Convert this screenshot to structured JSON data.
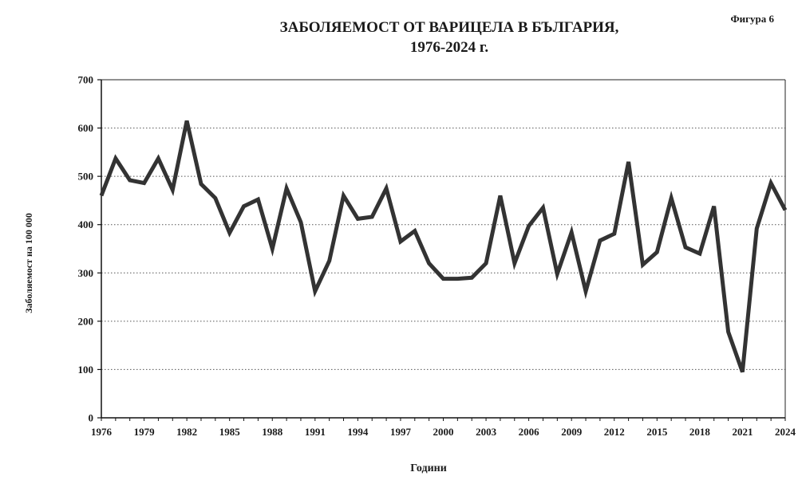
{
  "figure_label": "Фигура 6",
  "chart_data": {
    "type": "line",
    "title": "ЗАБОЛЯЕМОСТ ОТ ВАРИЦЕЛА В БЪЛГАРИЯ,",
    "subtitle": "1976-2024 г.",
    "xlabel": "Години",
    "ylabel": "Заболяемост на 100 000",
    "xlim": [
      1976,
      2024
    ],
    "ylim": [
      0,
      700
    ],
    "x_ticks": [
      1976,
      1979,
      1982,
      1985,
      1988,
      1991,
      1994,
      1997,
      2000,
      2003,
      2006,
      2009,
      2012,
      2015,
      2018,
      2021,
      2024
    ],
    "y_ticks": [
      0,
      100,
      200,
      300,
      400,
      500,
      600,
      700
    ],
    "grid": "horizontal dotted",
    "line_color": "#333333",
    "series": [
      {
        "x": [
          1976,
          1977,
          1978,
          1979,
          1980,
          1981,
          1982,
          1983,
          1984,
          1985,
          1986,
          1987,
          1988,
          1989,
          1990,
          1991,
          1992,
          1993,
          1994,
          1995,
          1996,
          1997,
          1998,
          1999,
          2000,
          2001,
          2002,
          2003,
          2004,
          2005,
          2006,
          2007,
          2008,
          2009,
          2010,
          2011,
          2012,
          2013,
          2014,
          2015,
          2016,
          2017,
          2018,
          2019,
          2020,
          2021,
          2022,
          2023,
          2024
        ],
        "values": [
          460,
          537,
          492,
          486,
          537,
          472,
          615,
          484,
          455,
          383,
          438,
          452,
          350,
          475,
          405,
          262,
          325,
          460,
          412,
          416,
          475,
          365,
          387,
          320,
          288,
          288,
          290,
          320,
          460,
          320,
          397,
          435,
          298,
          384,
          262,
          367,
          381,
          530,
          317,
          343,
          455,
          353,
          340,
          438,
          178,
          95,
          392,
          486,
          430
        ]
      }
    ]
  }
}
